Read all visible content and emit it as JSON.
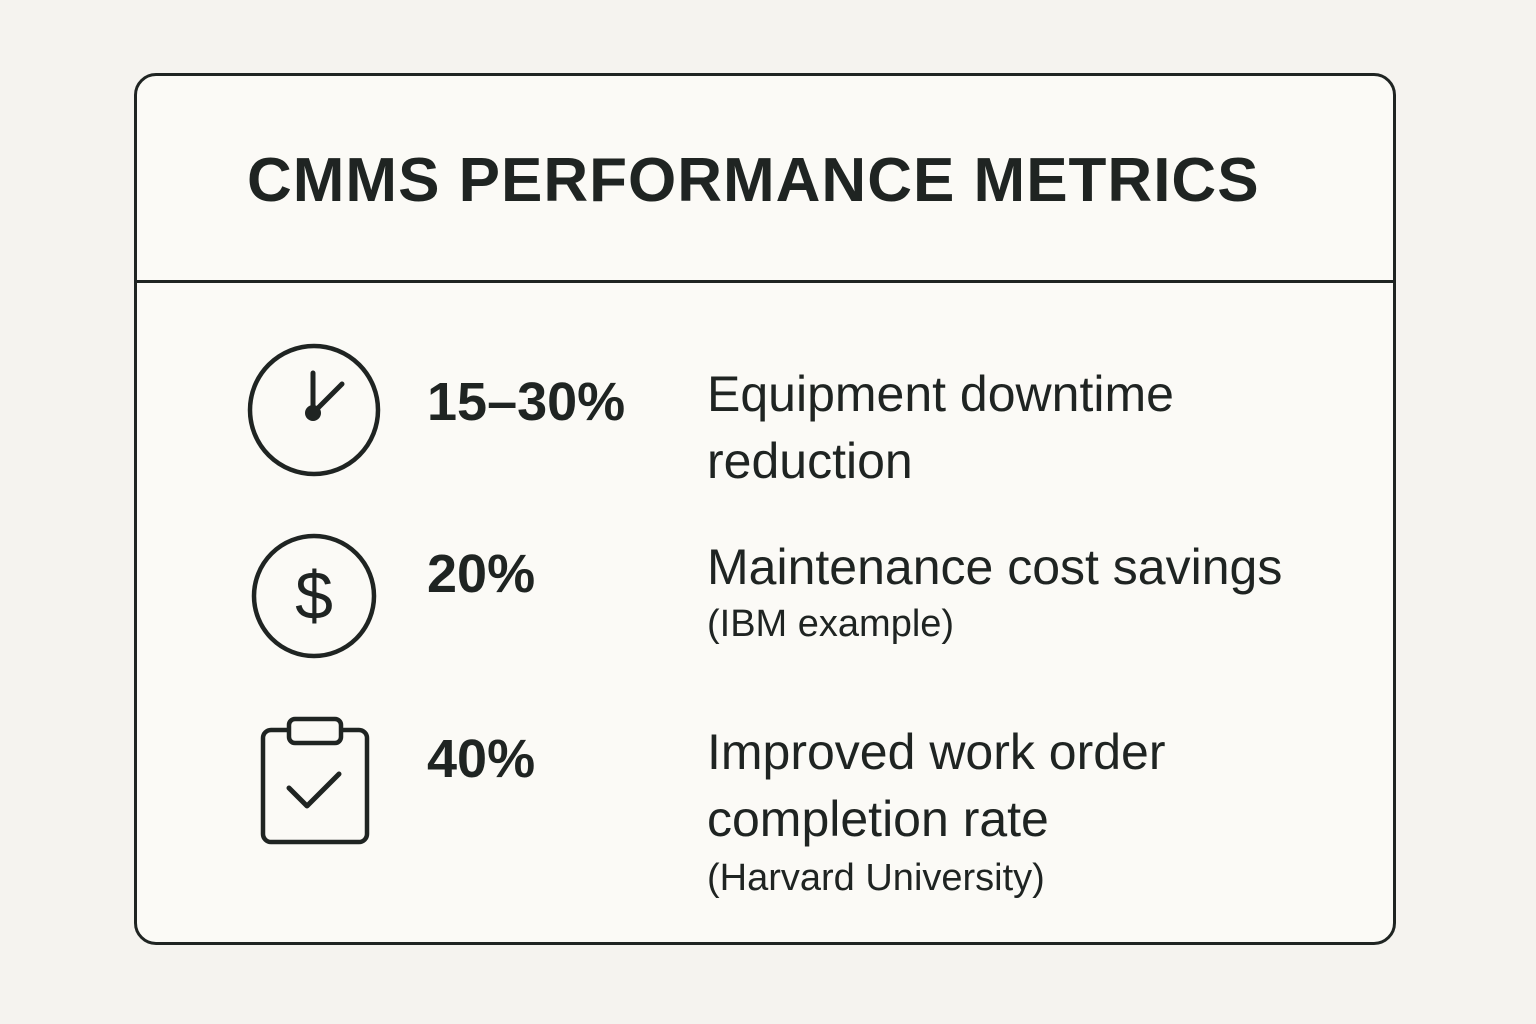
{
  "title": "CMMS PERFORMANCE METRICS",
  "stroke_color": "#1f2422",
  "metrics": [
    {
      "icon": "clock-icon",
      "value": "15–30%",
      "description_lines": [
        "Equipment downtime",
        "reduction"
      ],
      "note": ""
    },
    {
      "icon": "dollar-icon",
      "value": "20%",
      "description_lines": [
        "Maintenance cost savings"
      ],
      "note": "(IBM example)"
    },
    {
      "icon": "clipboard-check-icon",
      "value": "40%",
      "description_lines": [
        "Improved work order",
        "completion rate"
      ],
      "note": "(Harvard University)"
    }
  ]
}
